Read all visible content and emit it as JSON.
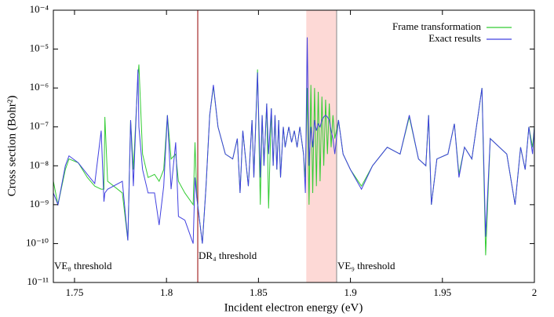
{
  "chart_data": {
    "type": "line",
    "xlabel": "Incident electron energy (eV)",
    "ylabel": "Cross section (Bohr²)",
    "yscale": "log",
    "xlim": [
      1.7385,
      2.0
    ],
    "ylim": [
      1e-11,
      0.0001
    ],
    "xticks": [
      1.75,
      1.8,
      1.85,
      1.9,
      1.95,
      2
    ],
    "yticks": [
      {
        "value": 1e-11,
        "label": "10⁻¹¹"
      },
      {
        "value": 1e-10,
        "label": "10⁻¹⁰"
      },
      {
        "value": 1e-09,
        "label": "10⁻⁹"
      },
      {
        "value": 1e-08,
        "label": "10⁻⁸"
      },
      {
        "value": 1e-07,
        "label": "10⁻⁷"
      },
      {
        "value": 1e-06,
        "label": "10⁻⁶"
      },
      {
        "value": 1e-05,
        "label": "10⁻⁵"
      },
      {
        "value": 0.0001,
        "label": "10⁻⁴"
      }
    ],
    "legend": "top-right",
    "shaded_region": {
      "x": [
        1.876,
        1.8925
      ],
      "color": "#fdd9d6"
    },
    "annotations": [
      {
        "text": "VE₈ threshold",
        "x": 1.7385,
        "color": "#999999"
      },
      {
        "text": "DR₄ threshold",
        "x": 1.817,
        "color": "#a52a2a"
      },
      {
        "text": "VE₉ threshold",
        "x": 1.8925,
        "color": "#999999"
      }
    ],
    "x": [
      1.7385,
      1.741,
      1.745,
      1.747,
      1.752,
      1.757,
      1.761,
      1.7645,
      1.766,
      1.7665,
      1.768,
      1.776,
      1.779,
      1.7805,
      1.782,
      1.7845,
      1.785,
      1.787,
      1.79,
      1.7935,
      1.796,
      1.7985,
      1.8005,
      1.8025,
      1.805,
      1.8065,
      1.81,
      1.8145,
      1.8155,
      1.8165,
      1.8195,
      1.8215,
      1.8235,
      1.8255,
      1.828,
      1.832,
      1.836,
      1.8385,
      1.84,
      1.8415,
      1.843,
      1.8445,
      1.8465,
      1.8475,
      1.8495,
      1.851,
      1.852,
      1.853,
      1.8545,
      1.8555,
      1.857,
      1.858,
      1.859,
      1.86,
      1.861,
      1.862,
      1.8635,
      1.8645,
      1.8665,
      1.868,
      1.8695,
      1.871,
      1.8725,
      1.8745,
      1.8755,
      1.8765,
      1.8775,
      1.8785,
      1.8795,
      1.8805,
      1.8815,
      1.8825,
      1.8835,
      1.8845,
      1.8855,
      1.8865,
      1.8875,
      1.8885,
      1.8895,
      1.8905,
      1.8915,
      1.8935,
      1.896,
      1.9,
      1.906,
      1.912,
      1.92,
      1.927,
      1.932,
      1.937,
      1.941,
      1.9425,
      1.944,
      1.947,
      1.953,
      1.9565,
      1.959,
      1.962,
      1.966,
      1.9715,
      1.9735,
      1.976,
      1.981,
      1.985,
      1.9895,
      1.9925,
      1.995,
      1.997,
      1.999,
      2.0
    ],
    "series": [
      {
        "name": "Frame transformation",
        "color": "#33cc33",
        "values": [
          4e-09,
          1e-09,
          8e-09,
          1.5e-08,
          1.2e-08,
          5e-09,
          3e-09,
          2.5e-09,
          2.5e-09,
          1.8e-07,
          4e-09,
          2e-09,
          1.2e-10,
          1.5e-07,
          8e-09,
          2e-06,
          4e-06,
          2e-08,
          5e-09,
          6e-09,
          4e-09,
          8e-09,
          2e-07,
          1.5e-08,
          2e-08,
          4e-09,
          2e-09,
          1e-09,
          4e-08,
          1.5e-09,
          1e-10,
          3e-09,
          2e-07,
          1.1e-06,
          1e-07,
          2e-08,
          1.5e-08,
          5e-08,
          2e-09,
          8e-08,
          1.5e-08,
          3e-09,
          1.5e-07,
          5e-09,
          3e-06,
          1e-09,
          2e-07,
          1e-08,
          4e-07,
          8e-10,
          3e-07,
          1e-08,
          2e-07,
          8e-09,
          1.5e-07,
          5e-09,
          1e-07,
          3e-08,
          1e-07,
          4e-08,
          8e-08,
          3e-08,
          1e-07,
          2e-08,
          5e-09,
          1e-06,
          1e-09,
          1.2e-06,
          2e-09,
          1e-06,
          3e-09,
          8e-07,
          4e-09,
          6e-07,
          1e-08,
          5e-07,
          2e-08,
          4e-07,
          3e-08,
          2e-07,
          5e-08,
          1.5e-07,
          2e-08,
          8e-09,
          3e-09,
          1e-08,
          3e-08,
          2e-08,
          1.8e-07,
          1.5e-08,
          1e-08,
          2e-07,
          1e-09,
          1.5e-08,
          2e-08,
          1.2e-07,
          6e-09,
          3e-08,
          1.5e-08,
          1e-06,
          5e-11,
          5e-08,
          3e-08,
          2e-08,
          1e-09,
          3e-08,
          8e-09,
          1e-07,
          3e-08,
          1e-07
        ]
      },
      {
        "name": "Exact results",
        "color": "#4040e0",
        "values": [
          2e-09,
          1e-09,
          1e-08,
          1.8e-08,
          1.2e-08,
          6e-09,
          3.5e-09,
          8e-08,
          1.2e-09,
          2e-09,
          2.5e-09,
          4e-09,
          1.2e-10,
          1.5e-07,
          3e-09,
          3e-06,
          1e-07,
          8e-09,
          2e-09,
          2e-09,
          3e-10,
          3e-09,
          2e-07,
          2.5e-09,
          4e-08,
          5e-10,
          4e-10,
          1e-10,
          5e-09,
          1.5e-09,
          1e-10,
          3e-09,
          2e-07,
          1.2e-06,
          1e-07,
          2e-08,
          1.5e-08,
          5e-08,
          2e-09,
          8e-08,
          1.5e-08,
          3e-09,
          1.5e-07,
          5e-09,
          2.5e-06,
          5e-09,
          2e-07,
          1e-08,
          4e-07,
          2e-08,
          3e-07,
          1e-08,
          2e-07,
          8e-09,
          1.5e-07,
          5e-09,
          1e-07,
          3e-08,
          1e-07,
          4e-08,
          8e-08,
          3e-08,
          1e-07,
          2e-08,
          2e-09,
          2e-05,
          1e-08,
          1e-07,
          3e-08,
          1.5e-07,
          8e-08,
          1.2e-07,
          1e-07,
          1.5e-07,
          1.8e-07,
          2e-07,
          1.8e-07,
          1.5e-07,
          8e-08,
          5e-08,
          2e-08,
          1.5e-07,
          2e-08,
          8e-09,
          2.5e-09,
          1e-08,
          3e-08,
          2e-08,
          2e-07,
          1.5e-08,
          1e-08,
          2e-07,
          1e-09,
          1.5e-08,
          2e-08,
          1.2e-07,
          5e-09,
          3e-08,
          1.5e-08,
          1e-06,
          1.5e-10,
          5e-08,
          3e-08,
          2e-08,
          1e-09,
          3e-08,
          8e-09,
          1e-07,
          2e-08,
          1e-07
        ]
      }
    ]
  }
}
